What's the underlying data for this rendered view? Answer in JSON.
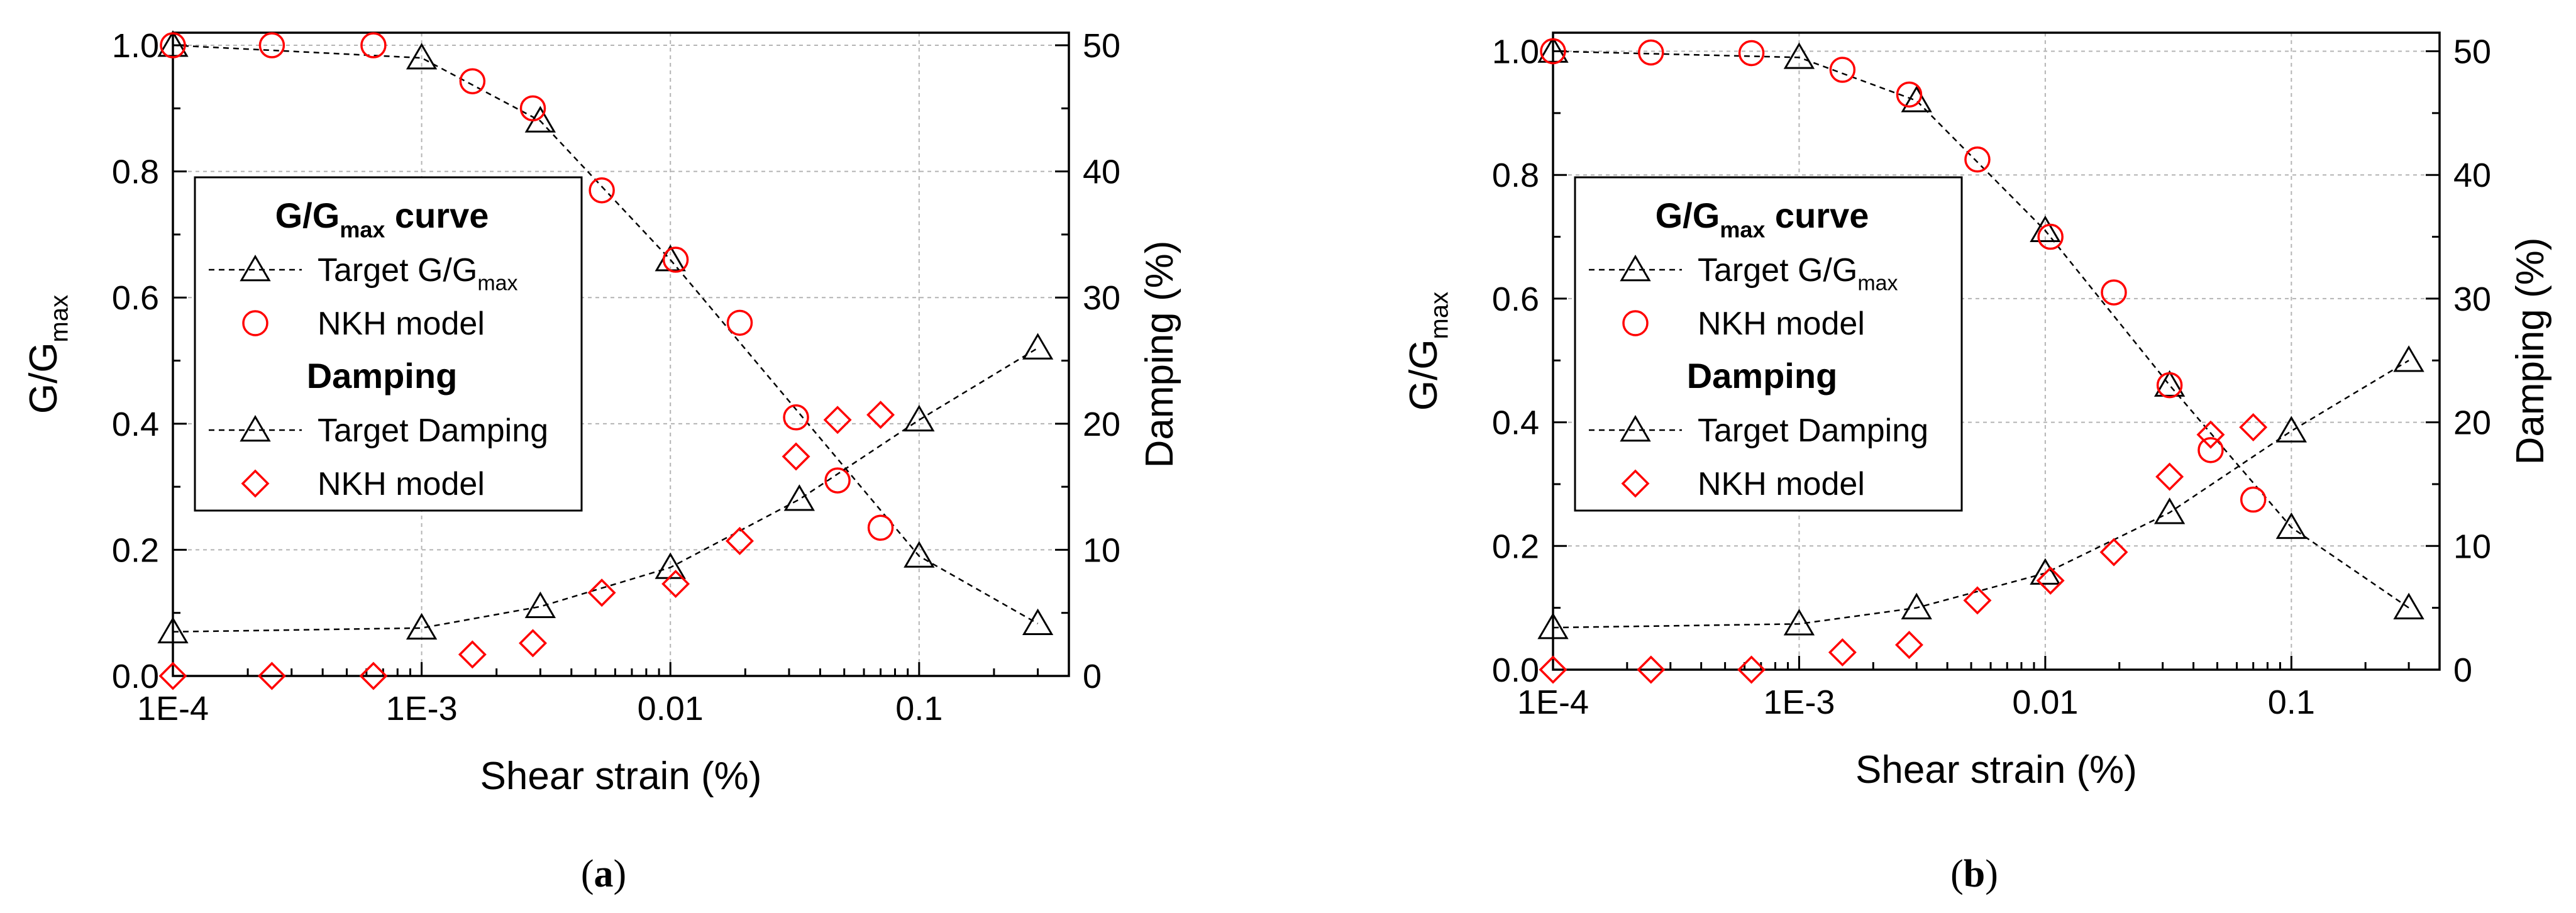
{
  "chart_data": [
    {
      "panel_label": "(a)",
      "panel_letter": "a",
      "type": "scatter",
      "xscale": "log",
      "xlim": [
        0.0001,
        0.4
      ],
      "ylim_left": [
        0,
        1.02
      ],
      "ylim_right": [
        0,
        51
      ],
      "grid": true,
      "xlabel": "Shear strain (%)",
      "ylabel_left": "G/Gmax",
      "ylabel_right": "Damping (%)",
      "x_ticks": [
        {
          "value": 0.0001,
          "label": "1E-4"
        },
        {
          "value": 0.001,
          "label": "1E-3"
        },
        {
          "value": 0.01,
          "label": "0.01"
        },
        {
          "value": 0.1,
          "label": "0.1"
        }
      ],
      "y_left_ticks": [
        {
          "value": 0.0,
          "label": "0.0"
        },
        {
          "value": 0.2,
          "label": "0.2"
        },
        {
          "value": 0.4,
          "label": "0.4"
        },
        {
          "value": 0.6,
          "label": "0.6"
        },
        {
          "value": 0.8,
          "label": "0.8"
        },
        {
          "value": 1.0,
          "label": "1.0"
        }
      ],
      "y_right_ticks": [
        {
          "value": 0,
          "label": "0"
        },
        {
          "value": 10,
          "label": "10"
        },
        {
          "value": 20,
          "label": "20"
        },
        {
          "value": 30,
          "label": "30"
        },
        {
          "value": 40,
          "label": "40"
        },
        {
          "value": 50,
          "label": "50"
        }
      ],
      "legend": {
        "position": "center-left",
        "group1_title": "G/Gmax curve",
        "target_ggmax": "Target G/Gmax",
        "nkh_ggmax": "NKH model",
        "group2_title": "Damping",
        "target_damping": "Target Damping",
        "nkh_damping": "NKH model"
      },
      "series": [
        {
          "name": "Target G/Gmax",
          "axis": "left",
          "marker": "triangle",
          "line": "dashed",
          "color": "#000000",
          "x": [
            0.0001,
            0.001,
            0.003,
            0.01,
            0.1,
            0.3
          ],
          "y": [
            1.0,
            0.98,
            0.88,
            0.66,
            0.19,
            0.083
          ]
        },
        {
          "name": "NKH model (G/Gmax)",
          "axis": "left",
          "marker": "circle",
          "line": "none",
          "color": "#ff0000",
          "x": [
            0.0001,
            0.00025,
            0.00064,
            0.0016,
            0.0028,
            0.0053,
            0.0105,
            0.019,
            0.032,
            0.047,
            0.07
          ],
          "y": [
            1.0,
            1.0,
            1.0,
            0.943,
            0.9,
            0.77,
            0.66,
            0.56,
            0.41,
            0.31,
            0.235
          ]
        },
        {
          "name": "Target Damping",
          "axis": "right",
          "marker": "triangle",
          "line": "dashed",
          "color": "#000000",
          "x": [
            0.0001,
            0.001,
            0.003,
            0.01,
            0.033,
            0.1,
            0.3
          ],
          "y": [
            3.5,
            3.8,
            5.5,
            8.6,
            14.0,
            20.3,
            26.0
          ]
        },
        {
          "name": "NKH model (Damping)",
          "axis": "right",
          "marker": "diamond",
          "line": "none",
          "color": "#ff0000",
          "x": [
            0.0001,
            0.00025,
            0.00064,
            0.0016,
            0.0028,
            0.0053,
            0.0105,
            0.019,
            0.032,
            0.047,
            0.07
          ],
          "y": [
            0.0,
            0.0,
            0.0,
            1.7,
            2.6,
            6.6,
            7.3,
            10.7,
            17.4,
            20.3,
            20.7
          ]
        }
      ]
    },
    {
      "panel_label": "(b)",
      "panel_letter": "b",
      "type": "scatter",
      "xscale": "log",
      "xlim": [
        0.0001,
        0.4
      ],
      "ylim_left": [
        0,
        1.03
      ],
      "ylim_right": [
        0,
        51.5
      ],
      "grid": true,
      "xlabel": "Shear strain (%)",
      "ylabel_left": "G/Gmax",
      "ylabel_right": "Damping (%)",
      "x_ticks": [
        {
          "value": 0.0001,
          "label": "1E-4"
        },
        {
          "value": 0.001,
          "label": "1E-3"
        },
        {
          "value": 0.01,
          "label": "0.01"
        },
        {
          "value": 0.1,
          "label": "0.1"
        }
      ],
      "y_left_ticks": [
        {
          "value": 0.0,
          "label": "0.0"
        },
        {
          "value": 0.2,
          "label": "0.2"
        },
        {
          "value": 0.4,
          "label": "0.4"
        },
        {
          "value": 0.6,
          "label": "0.6"
        },
        {
          "value": 0.8,
          "label": "0.8"
        },
        {
          "value": 1.0,
          "label": "1.0"
        }
      ],
      "y_right_ticks": [
        {
          "value": 0,
          "label": "0"
        },
        {
          "value": 10,
          "label": "10"
        },
        {
          "value": 20,
          "label": "20"
        },
        {
          "value": 30,
          "label": "30"
        },
        {
          "value": 40,
          "label": "40"
        },
        {
          "value": 50,
          "label": "50"
        }
      ],
      "legend": {
        "position": "center-left",
        "group1_title": "G/Gmax curve",
        "target_ggmax": "Target G/Gmax",
        "nkh_ggmax": "NKH model",
        "group2_title": "Damping",
        "target_damping": "Target Damping",
        "nkh_damping": "NKH model"
      },
      "series": [
        {
          "name": "Target G/Gmax",
          "axis": "left",
          "marker": "triangle",
          "line": "dashed",
          "color": "#000000",
          "x": [
            0.0001,
            0.001,
            0.003,
            0.01,
            0.032,
            0.1,
            0.3
          ],
          "y": [
            1.0,
            0.99,
            0.92,
            0.71,
            0.46,
            0.23,
            0.1
          ]
        },
        {
          "name": "NKH model (G/Gmax)",
          "axis": "left",
          "marker": "circle",
          "line": "none",
          "color": "#ff0000",
          "x": [
            0.0001,
            0.00025,
            0.00064,
            0.0015,
            0.0028,
            0.0053,
            0.0105,
            0.019,
            0.032,
            0.047,
            0.07
          ],
          "y": [
            1.0,
            0.998,
            0.997,
            0.97,
            0.93,
            0.825,
            0.7,
            0.61,
            0.46,
            0.355,
            0.275
          ]
        },
        {
          "name": "Target Damping",
          "axis": "right",
          "marker": "triangle",
          "line": "dashed",
          "color": "#000000",
          "x": [
            0.0001,
            0.001,
            0.003,
            0.01,
            0.032,
            0.1,
            0.3
          ],
          "y": [
            3.4,
            3.7,
            5.0,
            7.8,
            12.7,
            19.3,
            25.0
          ]
        },
        {
          "name": "NKH model (Damping)",
          "axis": "right",
          "marker": "diamond",
          "line": "none",
          "color": "#ff0000",
          "x": [
            0.0001,
            0.00025,
            0.00064,
            0.0015,
            0.0028,
            0.0053,
            0.0105,
            0.019,
            0.032,
            0.047,
            0.07
          ],
          "y": [
            0.0,
            0.0,
            0.0,
            1.4,
            2.0,
            5.6,
            7.2,
            9.5,
            15.6,
            19.0,
            19.6
          ]
        }
      ]
    }
  ]
}
